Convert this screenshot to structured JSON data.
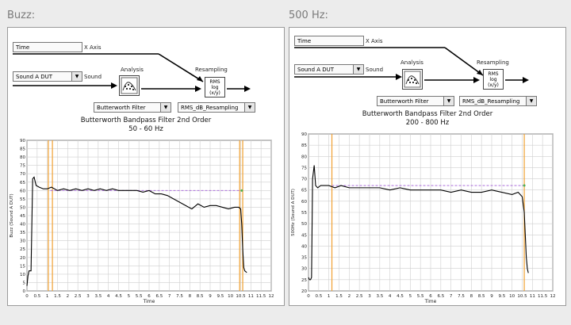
{
  "panels": [
    {
      "section_label": "Buzz:",
      "time_field": "Time",
      "x_axis_label": "X Axis",
      "sound_select": "Sound A DUT",
      "sound_label": "Sound",
      "analysis_label": "Analysis",
      "resampling_label": "Resampling",
      "filter_select": "Butterworth Filter",
      "resampling_select": "RMS_dB_Resampling",
      "rms_block": {
        "line1": "RMS",
        "line2": "log",
        "line3": "(x/y)"
      },
      "filter_title": "Butterworth Bandpass Filter 2nd Order",
      "filter_range": "50 - 60 Hz",
      "chart_data": {
        "type": "line",
        "xlabel": "Time",
        "ylabel": "Buzz (Sound A DUT)",
        "xlim": [
          0,
          12
        ],
        "ylim": [
          0,
          90
        ],
        "x_ticks": [
          "0",
          "0.5",
          "1",
          "1.5",
          "2",
          "2.5",
          "3",
          "3.5",
          "4",
          "4.5",
          "5",
          "5.5",
          "6",
          "6.5",
          "7",
          "7.5",
          "8",
          "8.5",
          "9",
          "9.5",
          "10",
          "10.5",
          "11",
          "11.5",
          "12"
        ],
        "y_ticks": [
          "0",
          "5",
          "10",
          "15",
          "20",
          "25",
          "30",
          "35",
          "40",
          "45",
          "50",
          "55",
          "60",
          "65",
          "70",
          "75",
          "80",
          "85",
          "90"
        ],
        "series": [
          {
            "values_x": [
              0.0,
              0.05,
              0.1,
              0.15,
              0.2,
              0.28,
              0.35,
              0.45,
              0.6,
              0.8,
              1.0,
              1.2,
              1.5,
              1.8,
              2.1,
              2.4,
              2.7,
              3.0,
              3.3,
              3.6,
              3.9,
              4.2,
              4.5,
              4.8,
              5.1,
              5.4,
              5.7,
              6.0,
              6.3,
              6.6,
              6.9,
              7.2,
              7.5,
              7.8,
              8.1,
              8.4,
              8.7,
              9.0,
              9.3,
              9.6,
              9.9,
              10.2,
              10.4,
              10.5,
              10.55,
              10.6,
              10.65,
              10.7,
              10.8
            ],
            "values_y": [
              3,
              9,
              12,
              12,
              12,
              67,
              68,
              63,
              62,
              61,
              61,
              62,
              60,
              61,
              60,
              61,
              60,
              61,
              60,
              61,
              60,
              61,
              60,
              60,
              60,
              60,
              59,
              60,
              58,
              58,
              57,
              55,
              53,
              51,
              49,
              52,
              50,
              51,
              51,
              50,
              49,
              50,
              50,
              49,
              40,
              25,
              14,
              12,
              11
            ]
          },
          {
            "values_x": [
              1.15,
              10.55
            ],
            "values_y": [
              60,
              60
            ]
          }
        ],
        "cursors_x": [
          1.05,
          1.25,
          10.45,
          10.6
        ]
      }
    },
    {
      "section_label": "500 Hz:",
      "time_field": "Time",
      "x_axis_label": "X Axis",
      "sound_select": "Sound A DUT",
      "sound_label": "Sound",
      "analysis_label": "Analysis",
      "resampling_label": "Resampling",
      "filter_select": "Butterworth Filter",
      "resampling_select": "RMS_dB_Resampling",
      "rms_block": {
        "line1": "RMS",
        "line2": "log",
        "line3": "(x/y)"
      },
      "filter_title": "Butterworth Bandpass Filter 2nd Order",
      "filter_range": "200 - 800 Hz",
      "chart_data": {
        "type": "line",
        "xlabel": "Time",
        "ylabel": "500Hz (Sound A DUT)",
        "xlim": [
          0,
          12
        ],
        "ylim": [
          20,
          90
        ],
        "x_ticks": [
          "0",
          "0.5",
          "1",
          "1.5",
          "2",
          "2.5",
          "3",
          "3.5",
          "4",
          "4.5",
          "5",
          "5.5",
          "6",
          "6.5",
          "7",
          "7.5",
          "8",
          "8.5",
          "9",
          "9.5",
          "10",
          "10.5",
          "11",
          "11.5",
          "12"
        ],
        "y_ticks": [
          "20",
          "25",
          "30",
          "35",
          "40",
          "45",
          "50",
          "55",
          "60",
          "65",
          "70",
          "75",
          "80",
          "85",
          "90"
        ],
        "series": [
          {
            "values_x": [
              0.0,
              0.05,
              0.1,
              0.15,
              0.2,
              0.28,
              0.35,
              0.45,
              0.6,
              0.8,
              1.0,
              1.3,
              1.6,
              2.0,
              2.5,
              3.0,
              3.5,
              4.0,
              4.5,
              5.0,
              5.5,
              6.0,
              6.5,
              7.0,
              7.5,
              8.0,
              8.5,
              9.0,
              9.5,
              10.0,
              10.3,
              10.5,
              10.6,
              10.65,
              10.7,
              10.75,
              10.8
            ],
            "values_y": [
              26,
              25,
              25,
              26,
              70,
              76,
              67,
              66,
              67,
              67,
              67,
              66,
              67,
              66,
              66,
              66,
              66,
              65,
              66,
              65,
              65,
              65,
              65,
              64,
              65,
              64,
              64,
              65,
              64,
              63,
              64,
              62,
              55,
              45,
              35,
              30,
              28
            ]
          },
          {
            "values_x": [
              1.15,
              10.6
            ],
            "values_y": [
              67,
              67
            ]
          }
        ],
        "cursors_x": [
          1.15,
          10.6
        ]
      }
    }
  ],
  "colors": {
    "panel_bg": "#ffffff",
    "plot_bg": "#ffffff",
    "grid": "#cfcfcf",
    "trace": "#000000",
    "reference": "#a05ad6",
    "cursor": "#f0a030"
  }
}
